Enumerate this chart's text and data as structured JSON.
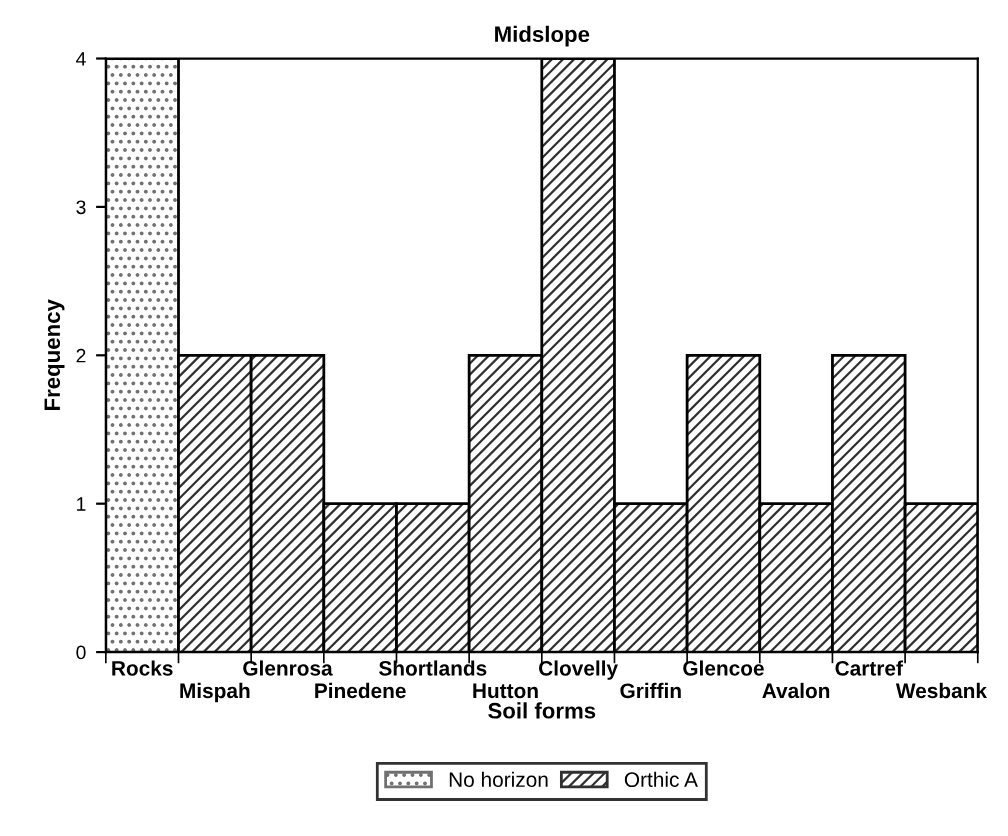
{
  "chart_data": {
    "type": "bar",
    "title": "Midslope",
    "xlabel": "Soil forms",
    "ylabel": "Frequency",
    "categories": [
      "Rocks",
      "Mispah",
      "Glenrosa",
      "Pinedene",
      "Shortlands",
      "Hutton",
      "Clovelly",
      "Griffin",
      "Glencoe",
      "Avalon",
      "Cartref",
      "Wesbank"
    ],
    "series": [
      {
        "name": "No horizon",
        "color": "#707070",
        "values": [
          4,
          null,
          null,
          null,
          null,
          null,
          null,
          null,
          null,
          null,
          null,
          null
        ]
      },
      {
        "name": "Orthic A",
        "color": "#303030",
        "values": [
          null,
          2,
          2,
          1,
          1,
          2,
          4,
          1,
          2,
          1,
          2,
          1
        ]
      }
    ],
    "ylim": [
      0,
      4
    ],
    "yticks": [
      0,
      1,
      2,
      3,
      4
    ],
    "grid": false,
    "legend": "bottom"
  }
}
